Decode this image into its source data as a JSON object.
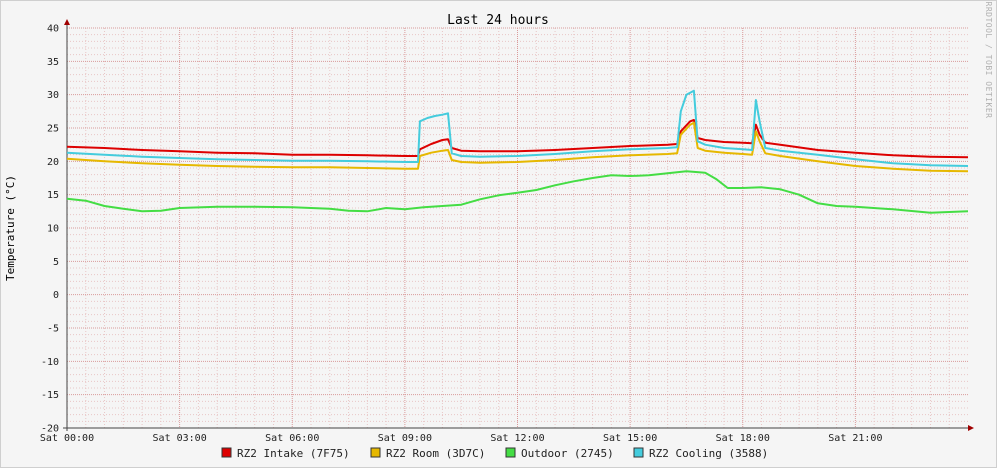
{
  "chart_data": {
    "type": "line",
    "title": "Last 24 hours",
    "xlabel": "",
    "ylabel": "Temperature (°C)",
    "ylim": [
      -20,
      40
    ],
    "xlim": [
      0,
      24
    ],
    "yticks": [
      40,
      35,
      30,
      25,
      20,
      15,
      10,
      5,
      0,
      -5,
      -10,
      -15,
      -20
    ],
    "xticks": [
      {
        "hour": 0,
        "label": "Sat 00:00"
      },
      {
        "hour": 3,
        "label": "Sat 03:00"
      },
      {
        "hour": 6,
        "label": "Sat 06:00"
      },
      {
        "hour": 9,
        "label": "Sat 09:00"
      },
      {
        "hour": 12,
        "label": "Sat 12:00"
      },
      {
        "hour": 15,
        "label": "Sat 15:00"
      },
      {
        "hour": 18,
        "label": "Sat 18:00"
      },
      {
        "hour": 21,
        "label": "Sat 21:00"
      }
    ],
    "grid": true,
    "legend_position": "bottom",
    "watermark": "RRDTOOL / TOBI OETIKER",
    "series": [
      {
        "name": "RZ2 Intake (7F75)",
        "color": "#dd0000",
        "points": [
          [
            0,
            22.2
          ],
          [
            1,
            22.0
          ],
          [
            2,
            21.7
          ],
          [
            3,
            21.5
          ],
          [
            4,
            21.3
          ],
          [
            5,
            21.2
          ],
          [
            6,
            21.0
          ],
          [
            7,
            21.0
          ],
          [
            8,
            20.9
          ],
          [
            9,
            20.8
          ],
          [
            9.35,
            20.8
          ],
          [
            9.4,
            21.8
          ],
          [
            9.7,
            22.6
          ],
          [
            10.0,
            23.2
          ],
          [
            10.15,
            23.3
          ],
          [
            10.25,
            22.0
          ],
          [
            10.5,
            21.6
          ],
          [
            11,
            21.5
          ],
          [
            12,
            21.5
          ],
          [
            13,
            21.7
          ],
          [
            14,
            22.0
          ],
          [
            15,
            22.3
          ],
          [
            16,
            22.5
          ],
          [
            16.25,
            22.6
          ],
          [
            16.35,
            24.5
          ],
          [
            16.6,
            26.0
          ],
          [
            16.7,
            26.2
          ],
          [
            16.8,
            23.5
          ],
          [
            17,
            23.2
          ],
          [
            17.5,
            22.9
          ],
          [
            18,
            22.8
          ],
          [
            18.25,
            22.7
          ],
          [
            18.35,
            25.5
          ],
          [
            18.45,
            24.0
          ],
          [
            18.6,
            22.8
          ],
          [
            19,
            22.5
          ],
          [
            20,
            21.7
          ],
          [
            21,
            21.3
          ],
          [
            22,
            20.9
          ],
          [
            23,
            20.7
          ],
          [
            24,
            20.6
          ]
        ]
      },
      {
        "name": "RZ2 Room (3D7C)",
        "color": "#e6b800",
        "points": [
          [
            0,
            20.4
          ],
          [
            1,
            20.0
          ],
          [
            2,
            19.7
          ],
          [
            3,
            19.5
          ],
          [
            4,
            19.3
          ],
          [
            5,
            19.2
          ],
          [
            6,
            19.1
          ],
          [
            7,
            19.1
          ],
          [
            8,
            19.0
          ],
          [
            9,
            18.9
          ],
          [
            9.35,
            18.9
          ],
          [
            9.4,
            20.8
          ],
          [
            9.7,
            21.3
          ],
          [
            10.0,
            21.6
          ],
          [
            10.15,
            21.7
          ],
          [
            10.25,
            20.2
          ],
          [
            10.5,
            19.9
          ],
          [
            11,
            19.8
          ],
          [
            12,
            19.9
          ],
          [
            13,
            20.2
          ],
          [
            14,
            20.6
          ],
          [
            15,
            20.9
          ],
          [
            16,
            21.1
          ],
          [
            16.25,
            21.2
          ],
          [
            16.35,
            24.0
          ],
          [
            16.6,
            25.5
          ],
          [
            16.7,
            25.8
          ],
          [
            16.8,
            22.0
          ],
          [
            17,
            21.6
          ],
          [
            17.5,
            21.3
          ],
          [
            18,
            21.1
          ],
          [
            18.25,
            21.0
          ],
          [
            18.35,
            24.5
          ],
          [
            18.45,
            23.0
          ],
          [
            18.6,
            21.2
          ],
          [
            19,
            20.8
          ],
          [
            20,
            20.0
          ],
          [
            21,
            19.3
          ],
          [
            22,
            18.9
          ],
          [
            23,
            18.6
          ],
          [
            24,
            18.5
          ]
        ]
      },
      {
        "name": "Outdoor (2745)",
        "color": "#44dd44",
        "points": [
          [
            0,
            14.4
          ],
          [
            0.5,
            14.1
          ],
          [
            1,
            13.3
          ],
          [
            1.5,
            12.9
          ],
          [
            2,
            12.5
          ],
          [
            2.5,
            12.6
          ],
          [
            3,
            13.0
          ],
          [
            4,
            13.2
          ],
          [
            5,
            13.2
          ],
          [
            6,
            13.1
          ],
          [
            7,
            12.9
          ],
          [
            7.5,
            12.6
          ],
          [
            8,
            12.5
          ],
          [
            8.5,
            13.0
          ],
          [
            9,
            12.8
          ],
          [
            9.5,
            13.1
          ],
          [
            10,
            13.3
          ],
          [
            10.5,
            13.5
          ],
          [
            11,
            14.3
          ],
          [
            11.5,
            14.9
          ],
          [
            12,
            15.3
          ],
          [
            12.5,
            15.7
          ],
          [
            13,
            16.4
          ],
          [
            13.5,
            17.0
          ],
          [
            14,
            17.5
          ],
          [
            14.5,
            17.9
          ],
          [
            15,
            17.8
          ],
          [
            15.5,
            17.9
          ],
          [
            16,
            18.2
          ],
          [
            16.5,
            18.5
          ],
          [
            17,
            18.3
          ],
          [
            17.3,
            17.3
          ],
          [
            17.6,
            16.0
          ],
          [
            18,
            16.0
          ],
          [
            18.5,
            16.1
          ],
          [
            19,
            15.8
          ],
          [
            19.5,
            15.0
          ],
          [
            20,
            13.7
          ],
          [
            20.5,
            13.3
          ],
          [
            21,
            13.2
          ],
          [
            22,
            12.8
          ],
          [
            23,
            12.3
          ],
          [
            24,
            12.5
          ]
        ]
      },
      {
        "name": "RZ2 Cooling (3588)",
        "color": "#44ccdd",
        "points": [
          [
            0,
            21.3
          ],
          [
            1,
            21.0
          ],
          [
            2,
            20.7
          ],
          [
            3,
            20.5
          ],
          [
            4,
            20.3
          ],
          [
            5,
            20.2
          ],
          [
            6,
            20.1
          ],
          [
            7,
            20.1
          ],
          [
            8,
            20.0
          ],
          [
            9,
            19.9
          ],
          [
            9.35,
            19.9
          ],
          [
            9.4,
            26.0
          ],
          [
            9.6,
            26.5
          ],
          [
            9.8,
            26.8
          ],
          [
            10.0,
            27.0
          ],
          [
            10.15,
            27.2
          ],
          [
            10.25,
            21.2
          ],
          [
            10.5,
            20.8
          ],
          [
            11,
            20.7
          ],
          [
            12,
            20.8
          ],
          [
            13,
            21.1
          ],
          [
            14,
            21.5
          ],
          [
            15,
            21.8
          ],
          [
            16,
            22.0
          ],
          [
            16.25,
            22.1
          ],
          [
            16.35,
            27.5
          ],
          [
            16.5,
            30.0
          ],
          [
            16.7,
            30.6
          ],
          [
            16.8,
            23.0
          ],
          [
            17,
            22.5
          ],
          [
            17.5,
            22.0
          ],
          [
            18,
            21.8
          ],
          [
            18.25,
            21.7
          ],
          [
            18.35,
            29.2
          ],
          [
            18.45,
            26.0
          ],
          [
            18.6,
            22.0
          ],
          [
            19,
            21.6
          ],
          [
            20,
            21.0
          ],
          [
            21,
            20.3
          ],
          [
            22,
            19.7
          ],
          [
            23,
            19.4
          ],
          [
            24,
            19.3
          ]
        ]
      }
    ]
  }
}
